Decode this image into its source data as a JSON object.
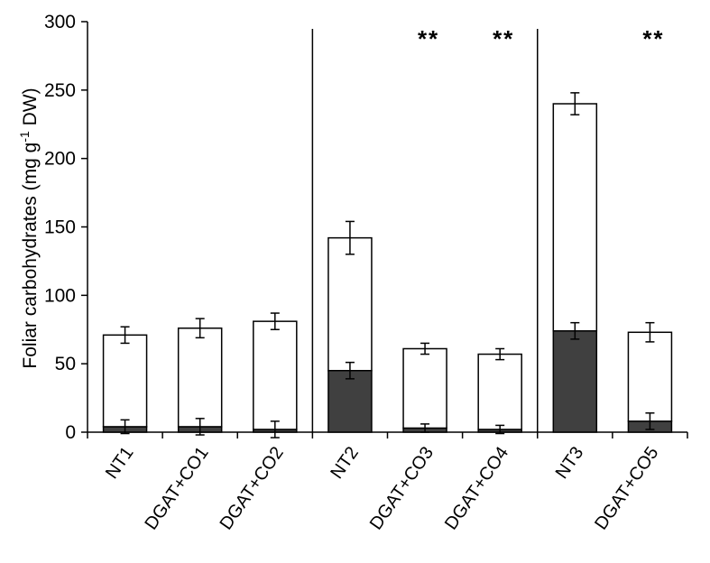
{
  "chart_data": {
    "type": "bar",
    "stacked": true,
    "ylabel_main": "Foliar carbohydrates (mg g",
    "ylabel_sup": "-1",
    "ylabel_tail": " DW)",
    "ylim": [
      0,
      300
    ],
    "yticks": [
      "0",
      "50",
      "100",
      "150",
      "200",
      "250",
      "300"
    ],
    "categories": [
      "NT1",
      "DGAT+CO1",
      "DGAT+CO2",
      "NT2",
      "DGAT+CO3",
      "DGAT+CO4",
      "NT3",
      "DGAT+CO5"
    ],
    "groups": [
      [
        0,
        1,
        2
      ],
      [
        3,
        4,
        5
      ],
      [
        6,
        7
      ]
    ],
    "series": [
      {
        "values": [
          4,
          4,
          2,
          45,
          3,
          2,
          74,
          8
        ],
        "errors": [
          5,
          6,
          6,
          6,
          3,
          3,
          6,
          6
        ],
        "color": "#404040"
      },
      {
        "values": [
          67,
          72,
          79,
          97,
          58,
          55,
          166,
          65
        ],
        "errors": [
          6,
          7,
          6,
          12,
          4,
          4,
          8,
          7
        ],
        "color": "#ffffff"
      }
    ],
    "significance": [
      "",
      "",
      "",
      "",
      "**",
      "**",
      "",
      "**"
    ],
    "grid": false,
    "legend": "none"
  }
}
